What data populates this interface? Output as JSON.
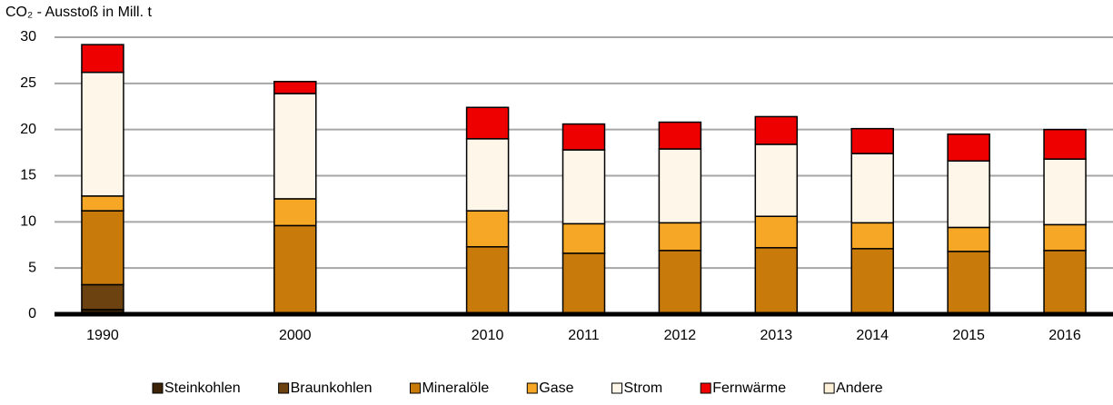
{
  "chart_data": {
    "type": "stacked_bar",
    "y_label": "CO₂ - Ausstoß in Mill. t",
    "categories": [
      "1990",
      null,
      "2000",
      null,
      "2010",
      "2011",
      "2012",
      "2013",
      "2014",
      "2015",
      "2016"
    ],
    "series": [
      {
        "name": "Steinkohlen",
        "color": "#3d2408",
        "values": [
          0.5,
          null,
          0,
          null,
          0,
          0,
          0,
          0,
          0,
          0,
          0
        ]
      },
      {
        "name": "Braunkohlen",
        "color": "#6b4210",
        "values": [
          2.7,
          null,
          0,
          null,
          0,
          0,
          0,
          0,
          0,
          0,
          0
        ]
      },
      {
        "name": "Mineralöle",
        "color": "#c87a0a",
        "values": [
          8.0,
          null,
          9.6,
          null,
          7.3,
          6.6,
          6.9,
          7.2,
          7.1,
          6.8,
          6.9
        ]
      },
      {
        "name": "Gase",
        "color": "#f6a726",
        "values": [
          1.6,
          null,
          2.9,
          null,
          3.9,
          3.2,
          3.0,
          3.4,
          2.8,
          2.6,
          2.8
        ]
      },
      {
        "name": "Strom",
        "color": "#fef6e8",
        "values": [
          13.4,
          null,
          11.4,
          null,
          7.8,
          8.0,
          8.0,
          7.8,
          7.5,
          7.2,
          7.1
        ]
      },
      {
        "name": "Fernwärme",
        "color": "#ee0000",
        "values": [
          3.0,
          null,
          1.3,
          null,
          3.4,
          2.8,
          2.9,
          3.0,
          2.7,
          2.9,
          3.2
        ]
      },
      {
        "name": "Andere",
        "color": "#fdf0d8",
        "values": [
          0,
          null,
          0,
          null,
          0,
          0,
          0,
          0,
          0,
          0,
          0
        ]
      }
    ],
    "ylim": [
      0,
      30
    ],
    "yticks": [
      0,
      5,
      10,
      15,
      20,
      25,
      30
    ],
    "grid": true,
    "legend": "bottom"
  }
}
